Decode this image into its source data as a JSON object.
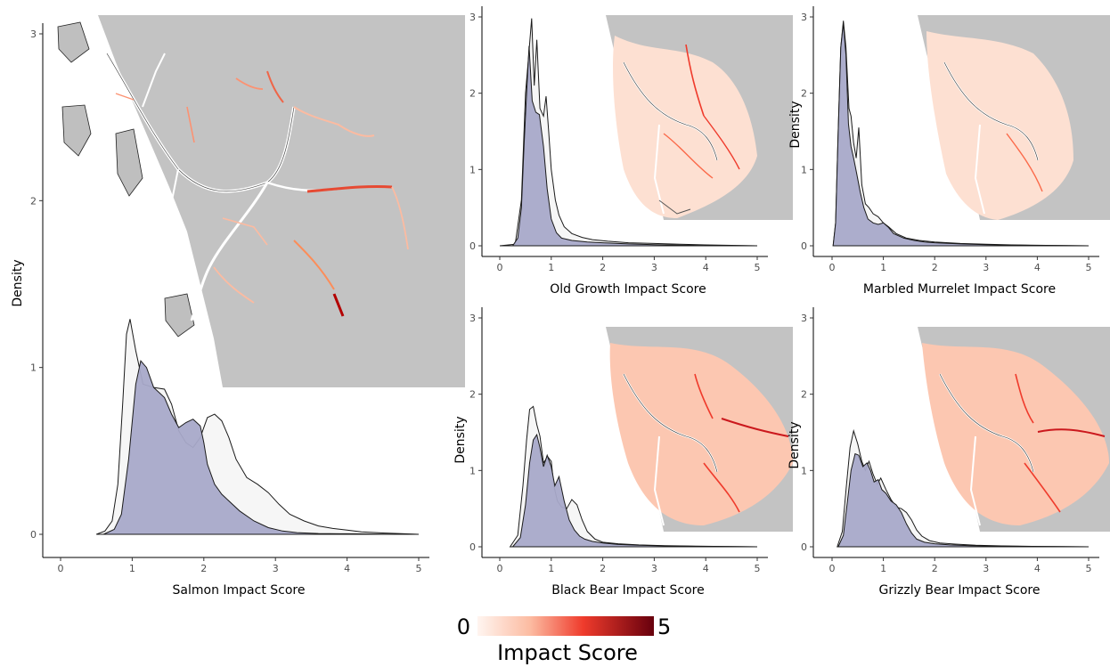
{
  "colors": {
    "map_background": "#c3c3c3",
    "density_outer_fill": "#f5f5f5",
    "density_inner_fill": "#a8a9c9",
    "density_stroke": "#1a1a1a",
    "impact_low": "#fff5f0",
    "impact_mid": "#ef3b2c",
    "impact_high": "#67000d"
  },
  "legend": {
    "min_label": "0",
    "max_label": "5",
    "title": "Impact Score"
  },
  "chart_data": [
    {
      "type": "area",
      "id": "salmon",
      "xlabel": "Salmon Impact Score",
      "ylabel": "Density",
      "xlim": [
        0,
        5
      ],
      "ylim": [
        0,
        3
      ],
      "x_ticks": [
        0,
        1,
        2,
        3,
        4,
        5
      ],
      "y_ticks": [
        0,
        1,
        2,
        3
      ],
      "series": [
        {
          "x": [
            0.5,
            0.62,
            0.72,
            0.8,
            0.87,
            0.92,
            0.97,
            1.05,
            1.15,
            1.3,
            1.45,
            1.55,
            1.65,
            1.75,
            1.85,
            1.95,
            2.05,
            2.15,
            2.25,
            2.35,
            2.45,
            2.6,
            2.75,
            2.9,
            3.05,
            3.2,
            3.4,
            3.6,
            3.8,
            4.0,
            4.2,
            4.5,
            4.8,
            5.0
          ],
          "y": [
            0,
            0.02,
            0.08,
            0.3,
            0.8,
            1.2,
            1.29,
            1.1,
            0.9,
            0.88,
            0.87,
            0.78,
            0.62,
            0.55,
            0.52,
            0.58,
            0.7,
            0.72,
            0.68,
            0.58,
            0.45,
            0.34,
            0.3,
            0.25,
            0.18,
            0.12,
            0.08,
            0.05,
            0.035,
            0.025,
            0.015,
            0.008,
            0.003,
            0
          ]
        },
        {
          "x": [
            0.6,
            0.75,
            0.85,
            0.95,
            1.05,
            1.12,
            1.2,
            1.3,
            1.45,
            1.55,
            1.65,
            1.75,
            1.85,
            1.95,
            2.0,
            2.05,
            2.15,
            2.25,
            2.35,
            2.5,
            2.7,
            2.9,
            3.1,
            3.3,
            3.6,
            4.0,
            4.5,
            5.0
          ],
          "y": [
            0,
            0.03,
            0.12,
            0.45,
            0.9,
            1.04,
            1.0,
            0.88,
            0.82,
            0.72,
            0.64,
            0.67,
            0.69,
            0.65,
            0.55,
            0.42,
            0.3,
            0.24,
            0.2,
            0.14,
            0.08,
            0.04,
            0.02,
            0.01,
            0.005,
            0.003,
            0.001,
            0
          ]
        }
      ]
    },
    {
      "type": "area",
      "id": "old-growth",
      "xlabel": "Old Growth Impact Score",
      "ylabel": "",
      "xlim": [
        0,
        5
      ],
      "ylim": [
        0,
        3
      ],
      "x_ticks": [
        0,
        1,
        2,
        3,
        4,
        5
      ],
      "y_ticks": [
        0,
        1,
        2,
        3
      ],
      "series": [
        {
          "x": [
            0,
            0.3,
            0.42,
            0.5,
            0.55,
            0.62,
            0.67,
            0.72,
            0.78,
            0.85,
            0.9,
            0.95,
            1.0,
            1.08,
            1.15,
            1.25,
            1.4,
            1.6,
            1.8,
            2.1,
            2.5,
            3.0,
            3.5,
            4.0,
            4.5,
            5.0
          ],
          "y": [
            0,
            0.02,
            0.6,
            2.0,
            2.4,
            2.98,
            2.1,
            2.7,
            1.8,
            1.7,
            1.96,
            1.5,
            1.0,
            0.6,
            0.4,
            0.25,
            0.16,
            0.11,
            0.08,
            0.06,
            0.04,
            0.03,
            0.02,
            0.012,
            0.006,
            0
          ]
        },
        {
          "x": [
            0.25,
            0.35,
            0.42,
            0.47,
            0.52,
            0.57,
            0.63,
            0.7,
            0.77,
            0.85,
            0.92,
            1.0,
            1.1,
            1.2,
            1.4,
            1.7,
            2.0,
            2.5,
            3.0,
            3.5,
            4.0,
            5.0
          ],
          "y": [
            0,
            0.1,
            0.5,
            1.3,
            2.0,
            2.62,
            1.9,
            1.75,
            1.72,
            1.3,
            0.75,
            0.35,
            0.17,
            0.1,
            0.07,
            0.05,
            0.04,
            0.025,
            0.015,
            0.008,
            0.004,
            0
          ]
        }
      ]
    },
    {
      "type": "area",
      "id": "marbled-murrelet",
      "xlabel": "Marbled Murrelet Impact Score",
      "ylabel": "Density",
      "xlim": [
        0,
        5
      ],
      "ylim": [
        0,
        3
      ],
      "x_ticks": [
        0,
        1,
        2,
        3,
        4,
        5
      ],
      "y_ticks": [
        0,
        1,
        2,
        3
      ],
      "series": [
        {
          "x": [
            0.02,
            0.07,
            0.12,
            0.17,
            0.22,
            0.27,
            0.33,
            0.37,
            0.42,
            0.47,
            0.52,
            0.58,
            0.65,
            0.72,
            0.8,
            0.9,
            1.0,
            1.1,
            1.25,
            1.45,
            1.7,
            2.0,
            2.5,
            3.0,
            3.5,
            4.0,
            4.5,
            5.0
          ],
          "y": [
            0,
            0.3,
            1.5,
            2.6,
            2.95,
            2.6,
            1.8,
            1.7,
            1.35,
            1.15,
            1.55,
            0.8,
            0.55,
            0.5,
            0.42,
            0.38,
            0.3,
            0.25,
            0.16,
            0.1,
            0.07,
            0.05,
            0.03,
            0.02,
            0.012,
            0.007,
            0.003,
            0
          ]
        },
        {
          "x": [
            0.02,
            0.07,
            0.12,
            0.17,
            0.22,
            0.27,
            0.32,
            0.37,
            0.42,
            0.48,
            0.55,
            0.62,
            0.7,
            0.8,
            0.9,
            1.0,
            1.1,
            1.2,
            1.4,
            1.6,
            1.8,
            2.0,
            2.5,
            3.0,
            3.5,
            4.0,
            4.5,
            5.0
          ],
          "y": [
            0,
            0.3,
            1.5,
            2.6,
            2.92,
            2.5,
            1.6,
            1.3,
            1.15,
            0.95,
            0.7,
            0.5,
            0.35,
            0.3,
            0.28,
            0.3,
            0.24,
            0.16,
            0.1,
            0.07,
            0.05,
            0.04,
            0.025,
            0.015,
            0.009,
            0.005,
            0.002,
            0
          ]
        }
      ]
    },
    {
      "type": "area",
      "id": "black-bear",
      "xlabel": "Black Bear Impact Score",
      "ylabel": "Density",
      "xlim": [
        0,
        5
      ],
      "ylim": [
        0,
        3
      ],
      "x_ticks": [
        0,
        1,
        2,
        3,
        4,
        5
      ],
      "y_ticks": [
        0,
        1,
        2,
        3
      ],
      "series": [
        {
          "x": [
            0.2,
            0.35,
            0.45,
            0.52,
            0.58,
            0.65,
            0.72,
            0.78,
            0.85,
            0.93,
            1.0,
            1.05,
            1.12,
            1.2,
            1.3,
            1.4,
            1.5,
            1.6,
            1.7,
            1.85,
            2.0,
            2.3,
            2.7,
            3.2,
            3.8,
            4.5,
            5.0
          ],
          "y": [
            0,
            0.15,
            0.8,
            1.4,
            1.8,
            1.84,
            1.6,
            1.45,
            1.1,
            1.18,
            1.12,
            0.8,
            0.6,
            0.52,
            0.5,
            0.62,
            0.55,
            0.35,
            0.2,
            0.1,
            0.06,
            0.04,
            0.025,
            0.015,
            0.008,
            0.003,
            0
          ]
        },
        {
          "x": [
            0.25,
            0.4,
            0.5,
            0.58,
            0.65,
            0.72,
            0.78,
            0.85,
            0.92,
            1.0,
            1.07,
            1.15,
            1.25,
            1.35,
            1.45,
            1.55,
            1.65,
            1.8,
            2.0,
            2.3,
            2.7,
            3.2,
            3.8,
            4.5,
            5.0
          ],
          "y": [
            0,
            0.12,
            0.55,
            1.1,
            1.4,
            1.47,
            1.3,
            1.05,
            1.2,
            1.05,
            0.8,
            0.92,
            0.6,
            0.35,
            0.22,
            0.14,
            0.1,
            0.07,
            0.05,
            0.03,
            0.02,
            0.012,
            0.006,
            0.002,
            0
          ]
        }
      ]
    },
    {
      "type": "area",
      "id": "grizzly-bear",
      "xlabel": "Grizzly Bear Impact Score",
      "ylabel": "Density",
      "xlim": [
        0,
        5
      ],
      "ylim": [
        0,
        3
      ],
      "x_ticks": [
        0,
        1,
        2,
        3,
        4,
        5
      ],
      "y_ticks": [
        0,
        1,
        2,
        3
      ],
      "series": [
        {
          "x": [
            0.1,
            0.2,
            0.28,
            0.35,
            0.42,
            0.5,
            0.58,
            0.65,
            0.72,
            0.8,
            0.88,
            0.95,
            1.05,
            1.15,
            1.25,
            1.35,
            1.45,
            1.55,
            1.65,
            1.75,
            1.9,
            2.1,
            2.4,
            2.8,
            3.3,
            3.9,
            4.5,
            5.0
          ],
          "y": [
            0,
            0.2,
            0.8,
            1.3,
            1.52,
            1.35,
            1.12,
            1.0,
            1.12,
            0.95,
            0.82,
            0.9,
            0.75,
            0.62,
            0.52,
            0.5,
            0.45,
            0.35,
            0.22,
            0.14,
            0.08,
            0.05,
            0.035,
            0.02,
            0.012,
            0.006,
            0.002,
            0
          ]
        },
        {
          "x": [
            0.12,
            0.22,
            0.3,
            0.37,
            0.45,
            0.52,
            0.6,
            0.68,
            0.75,
            0.82,
            0.9,
            0.97,
            1.05,
            1.15,
            1.25,
            1.35,
            1.45,
            1.55,
            1.65,
            1.8,
            2.0,
            2.3,
            2.7,
            3.2,
            3.8,
            4.5,
            5.0
          ],
          "y": [
            0,
            0.15,
            0.6,
            1.0,
            1.22,
            1.2,
            1.05,
            1.1,
            1.0,
            0.85,
            0.88,
            0.75,
            0.7,
            0.6,
            0.55,
            0.45,
            0.3,
            0.18,
            0.1,
            0.06,
            0.04,
            0.025,
            0.015,
            0.008,
            0.004,
            0.001,
            0
          ]
        }
      ]
    }
  ]
}
